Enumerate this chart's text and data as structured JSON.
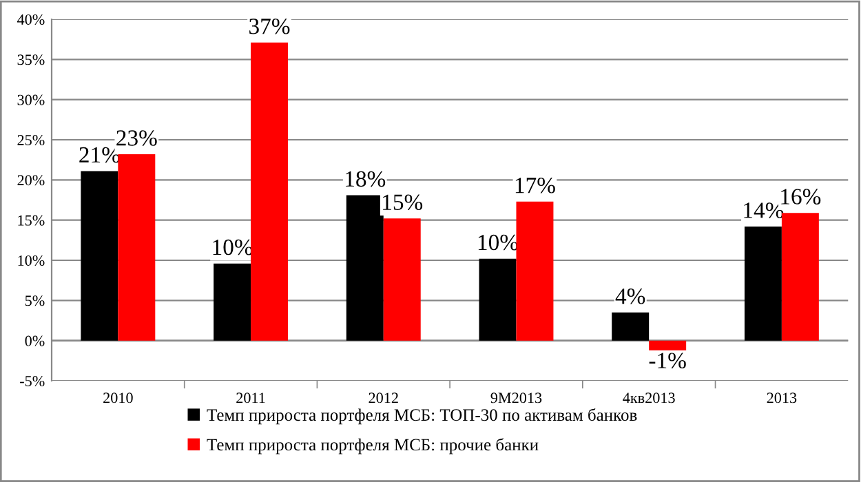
{
  "chart_data": {
    "type": "bar",
    "categories": [
      "2010",
      "2011",
      "2012",
      "9M2013",
      "4кв2013",
      "2013"
    ],
    "series": [
      {
        "name": "Темп прироста портфеля МСБ: ТОП-30 по активам банков",
        "color": "#000000",
        "values": [
          21.1,
          9.6,
          18.1,
          10.2,
          3.5,
          14.2
        ],
        "value_labels": [
          "21%",
          "10%",
          "18%",
          "10%",
          "4%",
          "14%"
        ]
      },
      {
        "name": "Темп прироста портфеля МСБ: прочие банки",
        "color": "#ff0000",
        "values": [
          23.2,
          37.1,
          15.2,
          17.3,
          -1.2,
          15.9
        ],
        "value_labels": [
          "23%",
          "37%",
          "15%",
          "17%",
          "-1%",
          "16%"
        ]
      }
    ],
    "ylim": [
      -5,
      40
    ],
    "yticks": [
      {
        "value": -5,
        "label": "-5%"
      },
      {
        "value": 0,
        "label": "0%"
      },
      {
        "value": 5,
        "label": "5%"
      },
      {
        "value": 10,
        "label": "10%"
      },
      {
        "value": 15,
        "label": "15%"
      },
      {
        "value": 20,
        "label": "20%"
      },
      {
        "value": 25,
        "label": "25%"
      },
      {
        "value": 30,
        "label": "30%"
      },
      {
        "value": 35,
        "label": "35%"
      },
      {
        "value": 40,
        "label": "40%"
      }
    ],
    "grid": "y",
    "legend": "bottom"
  }
}
